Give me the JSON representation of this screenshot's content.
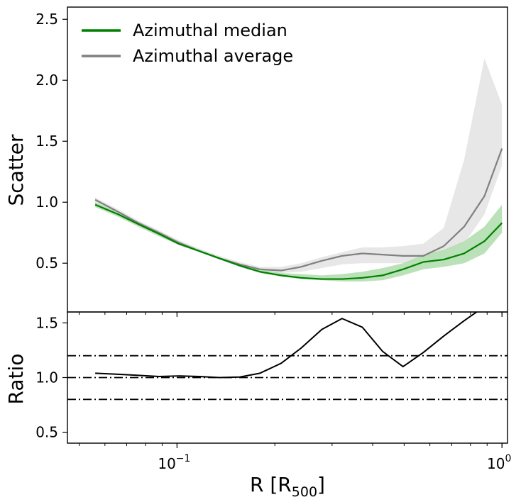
{
  "chart_data": [
    {
      "type": "line",
      "panel": "top",
      "ylabel": "Scatter",
      "xscale": "log",
      "xlim": [
        0.046,
        1.04
      ],
      "ylim": [
        0.1,
        2.6
      ],
      "yticks": [
        0.5,
        1.0,
        1.5,
        2.0,
        2.5
      ],
      "ytick_labels": [
        "0.5",
        "1.0",
        "1.5",
        "2.0",
        "2.5"
      ],
      "legend_position": "upper-left",
      "x": [
        0.056,
        0.066,
        0.076,
        0.088,
        0.101,
        0.117,
        0.135,
        0.156,
        0.18,
        0.209,
        0.241,
        0.279,
        0.322,
        0.372,
        0.429,
        0.496,
        0.573,
        0.662,
        0.765,
        0.883,
        1.0
      ],
      "series": [
        {
          "name": "Azimuthal median",
          "color": "#008000",
          "band_color": "#b7dfb4",
          "values": [
            0.98,
            0.9,
            0.82,
            0.74,
            0.66,
            0.6,
            0.54,
            0.48,
            0.43,
            0.4,
            0.38,
            0.37,
            0.37,
            0.38,
            0.4,
            0.45,
            0.51,
            0.53,
            0.58,
            0.68,
            0.83
          ],
          "band_low": [
            0.96,
            0.88,
            0.8,
            0.72,
            0.65,
            0.59,
            0.53,
            0.47,
            0.42,
            0.39,
            0.37,
            0.36,
            0.35,
            0.35,
            0.36,
            0.4,
            0.45,
            0.47,
            0.5,
            0.58,
            0.75
          ],
          "band_high": [
            1.0,
            0.92,
            0.84,
            0.76,
            0.68,
            0.61,
            0.55,
            0.49,
            0.45,
            0.42,
            0.41,
            0.4,
            0.41,
            0.43,
            0.46,
            0.5,
            0.57,
            0.61,
            0.68,
            0.8,
            0.98
          ]
        },
        {
          "name": "Azimuthal average",
          "color": "#808080",
          "band_color": "#e6e6e6",
          "values": [
            1.02,
            0.92,
            0.83,
            0.75,
            0.67,
            0.6,
            0.54,
            0.49,
            0.45,
            0.44,
            0.47,
            0.52,
            0.56,
            0.58,
            0.57,
            0.56,
            0.56,
            0.64,
            0.8,
            1.05,
            1.44
          ],
          "band_low": [
            1.0,
            0.9,
            0.81,
            0.73,
            0.66,
            0.59,
            0.53,
            0.48,
            0.44,
            0.42,
            0.43,
            0.46,
            0.49,
            0.5,
            0.5,
            0.5,
            0.51,
            0.56,
            0.66,
            0.9,
            1.3
          ],
          "band_high": [
            1.04,
            0.94,
            0.85,
            0.77,
            0.69,
            0.62,
            0.56,
            0.51,
            0.47,
            0.47,
            0.5,
            0.55,
            0.59,
            0.63,
            0.63,
            0.64,
            0.66,
            0.79,
            1.35,
            2.18,
            1.8
          ]
        }
      ]
    },
    {
      "type": "line",
      "panel": "bottom",
      "ylabel": "Ratio",
      "xlabel": "R [R",
      "xlabel_sub": "500",
      "xlabel_end": "]",
      "xscale": "log",
      "xlim": [
        0.046,
        1.04
      ],
      "ylim": [
        0.4,
        1.6
      ],
      "yticks": [
        0.5,
        1.0,
        1.5
      ],
      "ytick_labels": [
        "0.5",
        "1.0",
        "1.5"
      ],
      "xticks": [
        0.1,
        1.0
      ],
      "xtick_labels": [
        {
          "base": "10",
          "exp": "−1"
        },
        {
          "base": "10",
          "exp": "0"
        }
      ],
      "reference_lines": [
        0.8,
        1.0,
        1.2
      ],
      "series": [
        {
          "name": "",
          "color": "#000000",
          "x": [
            0.056,
            0.066,
            0.076,
            0.088,
            0.101,
            0.117,
            0.135,
            0.156,
            0.18,
            0.209,
            0.241,
            0.279,
            0.322,
            0.372,
            0.429,
            0.496,
            0.573,
            0.662,
            0.765,
            0.883,
            1.0
          ],
          "values": [
            1.04,
            1.03,
            1.02,
            1.01,
            1.015,
            1.01,
            1.0,
            1.005,
            1.04,
            1.13,
            1.27,
            1.44,
            1.54,
            1.46,
            1.24,
            1.1,
            1.23,
            1.38,
            1.52,
            1.65,
            1.75
          ]
        }
      ]
    }
  ]
}
